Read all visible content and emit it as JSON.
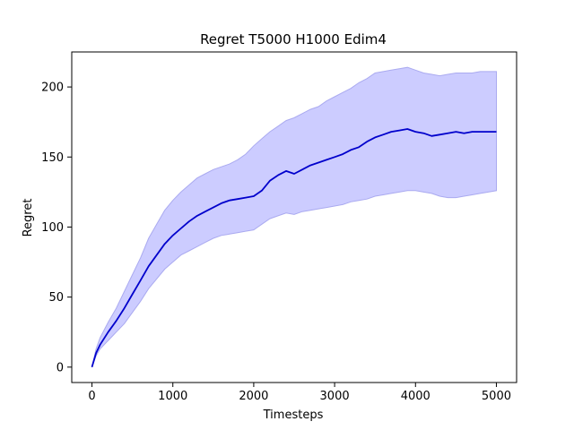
{
  "chart_data": {
    "type": "line",
    "title": "Regret T5000 H1000 Edim4",
    "xlabel": "Timesteps",
    "ylabel": "Regret",
    "xlim": [
      -250,
      5250
    ],
    "ylim": [
      -11,
      225
    ],
    "xticks": [
      0,
      1000,
      2000,
      3000,
      4000,
      5000
    ],
    "yticks": [
      0,
      50,
      100,
      150,
      200
    ],
    "grid": false,
    "colors": {
      "line": "#0000cc",
      "band_fill": "#ccccff",
      "band_edge": "#aaaaf0"
    },
    "series": [
      {
        "x": [
          0,
          50,
          100,
          200,
          300,
          400,
          500,
          600,
          700,
          800,
          900,
          1000,
          1100,
          1200,
          1300,
          1400,
          1500,
          1600,
          1700,
          1800,
          1900,
          2000,
          2100,
          2200,
          2300,
          2400,
          2500,
          2600,
          2700,
          2800,
          2900,
          3000,
          3100,
          3200,
          3300,
          3400,
          3500,
          3600,
          3700,
          3800,
          3900,
          4000,
          4100,
          4200,
          4300,
          4400,
          4500,
          4600,
          4700,
          4800,
          4900,
          5000
        ],
        "mean": [
          0,
          10,
          16,
          25,
          33,
          42,
          52,
          62,
          72,
          80,
          88,
          94,
          99,
          104,
          108,
          111,
          114,
          117,
          119,
          120,
          121,
          122,
          126,
          133,
          137,
          140,
          138,
          141,
          144,
          146,
          148,
          150,
          152,
          155,
          157,
          161,
          164,
          166,
          168,
          169,
          170,
          168,
          167,
          165,
          166,
          167,
          168,
          167,
          168,
          168,
          168,
          168
        ],
        "upper": [
          0,
          13,
          21,
          32,
          42,
          54,
          66,
          78,
          92,
          102,
          112,
          119,
          125,
          130,
          135,
          138,
          141,
          143,
          145,
          148,
          152,
          158,
          163,
          168,
          172,
          176,
          178,
          181,
          184,
          186,
          190,
          193,
          196,
          199,
          203,
          206,
          210,
          211,
          212,
          213,
          214,
          212,
          210,
          209,
          208,
          209,
          210,
          210,
          210,
          211,
          211,
          211
        ],
        "lower": [
          0,
          8,
          13,
          19,
          25,
          31,
          39,
          47,
          56,
          63,
          70,
          75,
          80,
          83,
          86,
          89,
          92,
          94,
          95,
          96,
          97,
          98,
          102,
          106,
          108,
          110,
          109,
          111,
          112,
          113,
          114,
          115,
          116,
          118,
          119,
          120,
          122,
          123,
          124,
          125,
          126,
          126,
          125,
          124,
          122,
          121,
          121,
          122,
          123,
          124,
          125,
          126
        ]
      }
    ]
  }
}
